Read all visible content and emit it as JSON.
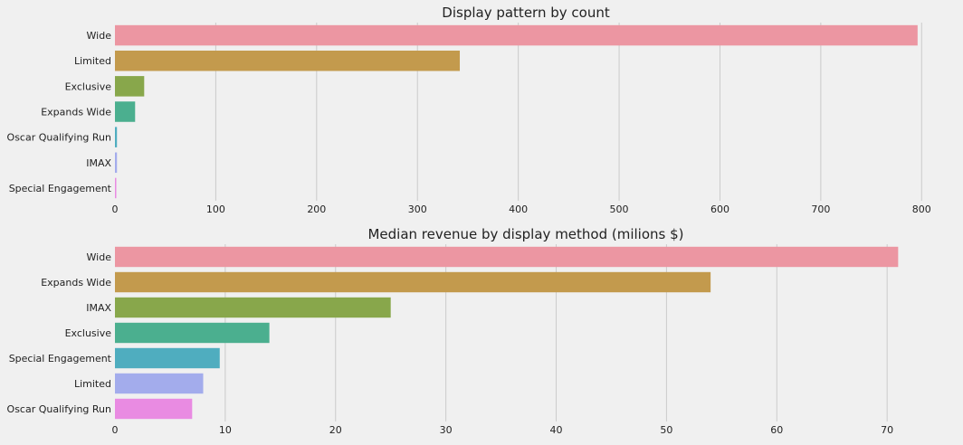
{
  "colors": {
    "background": "#f0f0f0",
    "grid": "#cbcbcb",
    "text": "#222222",
    "palette": [
      "#ec96a2",
      "#c39a4d",
      "#88a74b",
      "#4baf8f",
      "#4fadbf",
      "#a3acec",
      "#e98be2"
    ]
  },
  "chart_data": [
    {
      "type": "bar",
      "orientation": "horizontal",
      "title": "Display pattern by count",
      "xlabel": "",
      "ylabel": "",
      "categories": [
        "Wide",
        "Limited",
        "Exclusive",
        "Expands Wide",
        "Oscar Qualifying Run",
        "IMAX",
        "Special Engagement"
      ],
      "values": [
        796,
        342,
        29,
        20,
        2,
        2,
        1
      ],
      "xlim": [
        0,
        815
      ],
      "xticks": [
        0,
        100,
        200,
        300,
        400,
        500,
        600,
        700,
        800
      ],
      "grid": true,
      "legend": "none"
    },
    {
      "type": "bar",
      "orientation": "horizontal",
      "title": "Median revenue by display method (milions $)",
      "xlabel": "",
      "ylabel": "",
      "categories": [
        "Wide",
        "Expands Wide",
        "IMAX",
        "Exclusive",
        "Special Engagement",
        "Limited",
        "Oscar Qualifying Run"
      ],
      "values": [
        71.0,
        54.0,
        25.0,
        14.0,
        9.5,
        8.0,
        7.0
      ],
      "xlim": [
        0,
        74.5
      ],
      "xticks": [
        0,
        10,
        20,
        30,
        40,
        50,
        60,
        70
      ],
      "grid": true,
      "legend": "none"
    }
  ]
}
